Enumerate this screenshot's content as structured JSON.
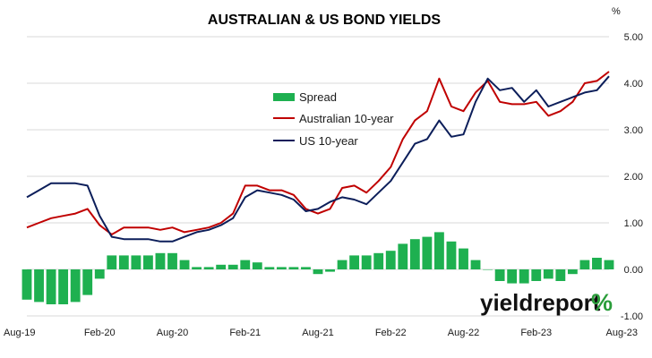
{
  "chart_data": {
    "type": "line",
    "title": "AUSTRALIAN & US BOND YIELDS",
    "y_unit": "%",
    "ylim": [
      -1.0,
      5.0
    ],
    "y_ticks": [
      "5.00",
      "4.00",
      "3.00",
      "2.00",
      "1.00",
      "0.00",
      "-1.00"
    ],
    "x_ticks": [
      "Aug-19",
      "Feb-20",
      "Aug-20",
      "Feb-21",
      "Aug-21",
      "Feb-22",
      "Aug-22",
      "Feb-23",
      "Aug-23"
    ],
    "grid": "horizontal",
    "legend_position": "upper-left-inside",
    "x": [
      "Aug-19",
      "Sep-19",
      "Oct-19",
      "Nov-19",
      "Dec-19",
      "Jan-20",
      "Feb-20",
      "Mar-20",
      "Apr-20",
      "May-20",
      "Jun-20",
      "Jul-20",
      "Aug-20",
      "Sep-20",
      "Oct-20",
      "Nov-20",
      "Dec-20",
      "Jan-21",
      "Feb-21",
      "Mar-21",
      "Apr-21",
      "May-21",
      "Jun-21",
      "Jul-21",
      "Aug-21",
      "Sep-21",
      "Oct-21",
      "Nov-21",
      "Dec-21",
      "Jan-22",
      "Feb-22",
      "Mar-22",
      "Apr-22",
      "May-22",
      "Jun-22",
      "Jul-22",
      "Aug-22",
      "Sep-22",
      "Oct-22",
      "Nov-22",
      "Dec-22",
      "Jan-23",
      "Feb-23",
      "Mar-23",
      "Apr-23",
      "May-23",
      "Jun-23",
      "Jul-23",
      "Aug-23"
    ],
    "series": [
      {
        "name": "Spread",
        "kind": "bar",
        "color": "#1eb050",
        "values": [
          -0.65,
          -0.7,
          -0.75,
          -0.75,
          -0.7,
          -0.55,
          -0.2,
          0.3,
          0.3,
          0.3,
          0.3,
          0.35,
          0.35,
          0.2,
          0.05,
          0.05,
          0.1,
          0.1,
          0.2,
          0.15,
          0.05,
          0.05,
          0.05,
          0.05,
          -0.1,
          -0.05,
          0.2,
          0.3,
          0.3,
          0.35,
          0.4,
          0.55,
          0.65,
          0.7,
          0.8,
          0.6,
          0.45,
          0.2,
          0.0,
          -0.25,
          -0.3,
          -0.3,
          -0.25,
          -0.2,
          -0.25,
          -0.1,
          0.2,
          0.25,
          0.2
        ]
      },
      {
        "name": "Australian 10-year",
        "kind": "line",
        "color": "#c00000",
        "values": [
          0.9,
          1.0,
          1.1,
          1.15,
          1.2,
          1.3,
          0.95,
          0.75,
          0.9,
          0.9,
          0.9,
          0.85,
          0.9,
          0.8,
          0.85,
          0.9,
          1.0,
          1.2,
          1.8,
          1.8,
          1.7,
          1.7,
          1.6,
          1.3,
          1.2,
          1.3,
          1.75,
          1.8,
          1.65,
          1.9,
          2.2,
          2.8,
          3.2,
          3.4,
          4.1,
          3.5,
          3.4,
          3.8,
          4.05,
          3.6,
          3.55,
          3.55,
          3.6,
          3.3,
          3.4,
          3.6,
          4.0,
          4.05,
          4.25
        ]
      },
      {
        "name": "US 10-year",
        "kind": "line",
        "color": "#0c1e5a",
        "values": [
          1.55,
          1.7,
          1.85,
          1.85,
          1.85,
          1.8,
          1.15,
          0.7,
          0.65,
          0.65,
          0.65,
          0.6,
          0.6,
          0.7,
          0.8,
          0.85,
          0.95,
          1.1,
          1.55,
          1.7,
          1.65,
          1.6,
          1.5,
          1.25,
          1.3,
          1.45,
          1.55,
          1.5,
          1.4,
          1.65,
          1.9,
          2.3,
          2.7,
          2.8,
          3.2,
          2.85,
          2.9,
          3.6,
          4.1,
          3.85,
          3.9,
          3.6,
          3.85,
          3.5,
          3.6,
          3.7,
          3.8,
          3.85,
          4.15
        ]
      }
    ]
  },
  "branding": {
    "logo_text": "yieldreport",
    "logo_symbol": "%"
  }
}
